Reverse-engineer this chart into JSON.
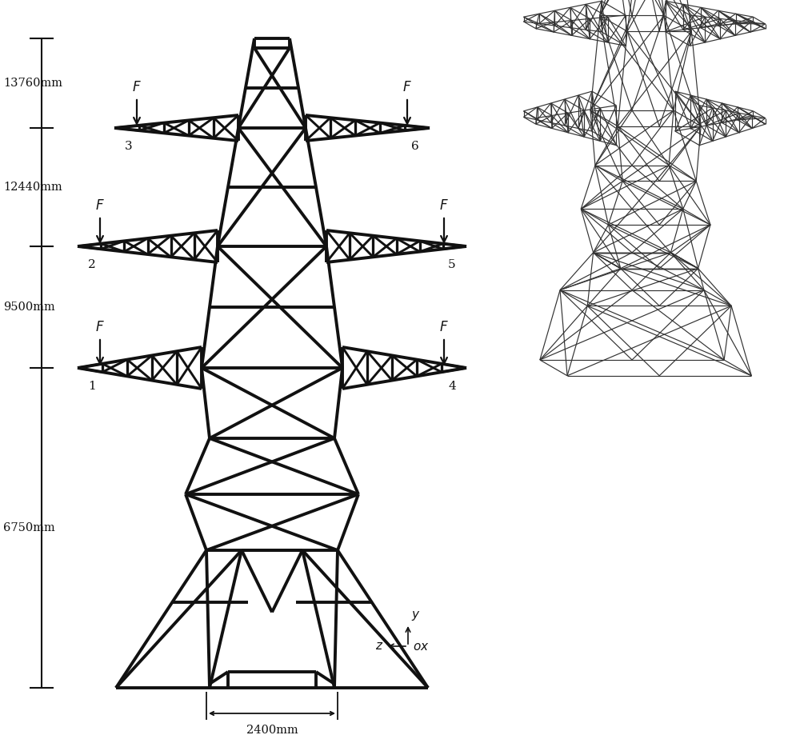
{
  "bg_color": "#ffffff",
  "line_color": "#111111",
  "tower_lw": 2.8,
  "mesh_lw": 0.85,
  "fig_width": 10.0,
  "fig_height": 9.24,
  "dim_labels": [
    "13760mm",
    "12440mm",
    "9500mm",
    "6750mm"
  ],
  "node_labels_left": [
    "3",
    "2",
    "1"
  ],
  "node_labels_right": [
    "6",
    "5",
    "4"
  ],
  "width_label": "2400mm",
  "coord_y": "y",
  "coord_z": "z",
  "coord_ox": "ox"
}
